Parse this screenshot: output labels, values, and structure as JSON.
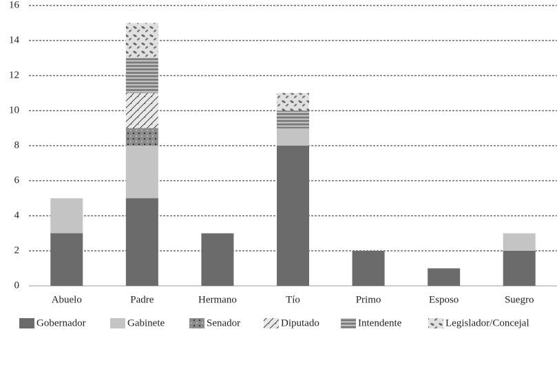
{
  "chart_data": {
    "type": "stacked-bar",
    "categories": [
      "Abuelo",
      "Padre",
      "Hermano",
      "Tío",
      "Primo",
      "Esposo",
      "Suegro"
    ],
    "series": [
      {
        "name": "Gobernador",
        "color": "#6b6b6b",
        "values": [
          3,
          5,
          3,
          8,
          2,
          1,
          2
        ]
      },
      {
        "name": "Gabinete",
        "color": "#c4c4c4",
        "values": [
          2,
          3,
          0,
          1,
          0,
          0,
          1
        ]
      },
      {
        "name": "Senador",
        "color": "#8c8c8c",
        "values": [
          0,
          1,
          0,
          0,
          0,
          0,
          0
        ]
      },
      {
        "name": "Diputado",
        "color": "#d8d8d8",
        "values": [
          0,
          2,
          0,
          0,
          0,
          0,
          0
        ]
      },
      {
        "name": "Intendente",
        "color": "#a0a0a0",
        "values": [
          0,
          2,
          0,
          1,
          0,
          0,
          0
        ]
      },
      {
        "name": "Legislador/Concejal",
        "color": "#e0e0e0",
        "values": [
          0,
          2,
          0,
          1,
          0,
          0,
          0
        ]
      }
    ],
    "ylim": [
      0,
      16
    ],
    "yticks": [
      0,
      2,
      4,
      6,
      8,
      10,
      12,
      14,
      16
    ],
    "grid": true
  }
}
